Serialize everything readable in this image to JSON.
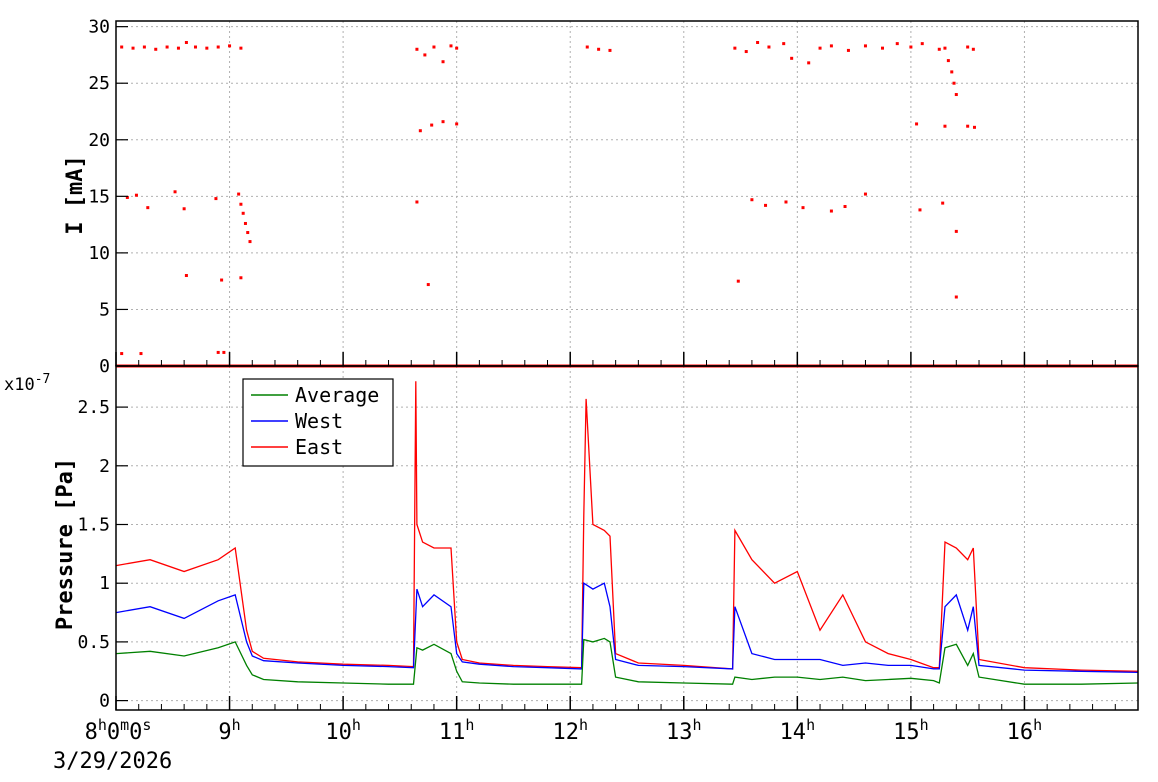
{
  "chart_data": [
    {
      "type": "scatter",
      "ylabel": "I [mA]",
      "ylim": [
        0,
        30.5
      ],
      "y_ticks": [
        "0",
        "5",
        "10",
        "15",
        "20",
        "25",
        "30"
      ],
      "grid": true,
      "color": "#ff0000",
      "points": [
        {
          "x": 8.05,
          "y": 28.2
        },
        {
          "x": 8.15,
          "y": 28.1
        },
        {
          "x": 8.25,
          "y": 28.2
        },
        {
          "x": 8.35,
          "y": 28.0
        },
        {
          "x": 8.45,
          "y": 28.2
        },
        {
          "x": 8.55,
          "y": 28.1
        },
        {
          "x": 8.62,
          "y": 28.6
        },
        {
          "x": 8.7,
          "y": 28.2
        },
        {
          "x": 8.8,
          "y": 28.1
        },
        {
          "x": 8.9,
          "y": 28.2
        },
        {
          "x": 9.0,
          "y": 28.3
        },
        {
          "x": 9.1,
          "y": 28.1
        },
        {
          "x": 8.1,
          "y": 14.9
        },
        {
          "x": 8.18,
          "y": 15.1
        },
        {
          "x": 8.28,
          "y": 14.0
        },
        {
          "x": 8.52,
          "y": 15.4
        },
        {
          "x": 8.6,
          "y": 13.9
        },
        {
          "x": 8.88,
          "y": 14.8
        },
        {
          "x": 9.08,
          "y": 15.2
        },
        {
          "x": 9.1,
          "y": 14.3
        },
        {
          "x": 8.62,
          "y": 8.0
        },
        {
          "x": 8.93,
          "y": 7.6
        },
        {
          "x": 9.1,
          "y": 7.8
        },
        {
          "x": 8.05,
          "y": 1.1
        },
        {
          "x": 8.22,
          "y": 1.1
        },
        {
          "x": 8.9,
          "y": 1.2
        },
        {
          "x": 8.95,
          "y": 1.2
        },
        {
          "x": 9.12,
          "y": 13.5
        },
        {
          "x": 9.14,
          "y": 12.6
        },
        {
          "x": 9.16,
          "y": 11.8
        },
        {
          "x": 9.18,
          "y": 11.0
        },
        {
          "x": 10.65,
          "y": 28.0
        },
        {
          "x": 10.72,
          "y": 27.5
        },
        {
          "x": 10.8,
          "y": 28.2
        },
        {
          "x": 10.88,
          "y": 26.9
        },
        {
          "x": 10.95,
          "y": 28.3
        },
        {
          "x": 11.0,
          "y": 28.1
        },
        {
          "x": 10.68,
          "y": 20.8
        },
        {
          "x": 10.78,
          "y": 21.3
        },
        {
          "x": 10.88,
          "y": 21.6
        },
        {
          "x": 11.0,
          "y": 21.4
        },
        {
          "x": 10.65,
          "y": 14.5
        },
        {
          "x": 10.75,
          "y": 7.2
        },
        {
          "x": 12.15,
          "y": 28.2
        },
        {
          "x": 12.25,
          "y": 28.0
        },
        {
          "x": 12.35,
          "y": 27.9
        },
        {
          "x": 13.45,
          "y": 28.1
        },
        {
          "x": 13.55,
          "y": 27.8
        },
        {
          "x": 13.65,
          "y": 28.6
        },
        {
          "x": 13.75,
          "y": 28.2
        },
        {
          "x": 13.88,
          "y": 28.5
        },
        {
          "x": 13.95,
          "y": 27.2
        },
        {
          "x": 14.1,
          "y": 26.8
        },
        {
          "x": 14.2,
          "y": 28.1
        },
        {
          "x": 14.3,
          "y": 28.3
        },
        {
          "x": 14.45,
          "y": 27.9
        },
        {
          "x": 14.6,
          "y": 28.3
        },
        {
          "x": 14.75,
          "y": 28.1
        },
        {
          "x": 14.88,
          "y": 28.5
        },
        {
          "x": 15.0,
          "y": 28.2
        },
        {
          "x": 15.1,
          "y": 28.5
        },
        {
          "x": 13.6,
          "y": 14.7
        },
        {
          "x": 13.72,
          "y": 14.2
        },
        {
          "x": 13.9,
          "y": 14.5
        },
        {
          "x": 14.05,
          "y": 14.0
        },
        {
          "x": 14.3,
          "y": 13.7
        },
        {
          "x": 14.42,
          "y": 14.1
        },
        {
          "x": 14.6,
          "y": 15.2
        },
        {
          "x": 15.08,
          "y": 13.8
        },
        {
          "x": 13.48,
          "y": 7.5
        },
        {
          "x": 15.05,
          "y": 21.4
        },
        {
          "x": 15.25,
          "y": 28.0
        },
        {
          "x": 15.3,
          "y": 28.1
        },
        {
          "x": 15.5,
          "y": 28.2
        },
        {
          "x": 15.55,
          "y": 28.0
        },
        {
          "x": 15.33,
          "y": 27.0
        },
        {
          "x": 15.36,
          "y": 26.0
        },
        {
          "x": 15.38,
          "y": 25.0
        },
        {
          "x": 15.4,
          "y": 24.0
        },
        {
          "x": 15.3,
          "y": 21.2
        },
        {
          "x": 15.5,
          "y": 21.2
        },
        {
          "x": 15.56,
          "y": 21.1
        },
        {
          "x": 15.28,
          "y": 14.4
        },
        {
          "x": 15.4,
          "y": 11.9
        },
        {
          "x": 15.4,
          "y": 6.1
        }
      ]
    },
    {
      "type": "line",
      "ylabel": "Pressure [Pa]",
      "y_multiplier": "x10",
      "y_exponent": "-7",
      "ylim": [
        -0.08,
        2.85
      ],
      "y_ticks": [
        "0",
        "0.5",
        "1",
        "1.5",
        "2",
        "2.5"
      ],
      "grid": true,
      "legend_placement": "top-left",
      "series": [
        {
          "name": "Average",
          "color": "#008000",
          "x": [
            8.0,
            8.3,
            8.6,
            8.9,
            9.05,
            9.15,
            9.2,
            9.3,
            9.6,
            10.0,
            10.4,
            10.62,
            10.65,
            10.7,
            10.8,
            10.95,
            11.0,
            11.05,
            11.2,
            11.5,
            11.8,
            12.1,
            12.12,
            12.2,
            12.3,
            12.35,
            12.4,
            12.6,
            13.0,
            13.43,
            13.45,
            13.6,
            13.8,
            14.0,
            14.2,
            14.4,
            14.6,
            14.8,
            15.0,
            15.2,
            15.25,
            15.3,
            15.4,
            15.5,
            15.55,
            15.6,
            16.0,
            16.5,
            17.0
          ],
          "values": [
            0.4,
            0.42,
            0.38,
            0.45,
            0.5,
            0.3,
            0.22,
            0.18,
            0.16,
            0.15,
            0.14,
            0.14,
            0.45,
            0.43,
            0.48,
            0.4,
            0.25,
            0.16,
            0.15,
            0.14,
            0.14,
            0.14,
            0.52,
            0.5,
            0.53,
            0.5,
            0.2,
            0.16,
            0.15,
            0.14,
            0.2,
            0.18,
            0.2,
            0.2,
            0.18,
            0.2,
            0.17,
            0.18,
            0.19,
            0.17,
            0.15,
            0.45,
            0.48,
            0.3,
            0.4,
            0.2,
            0.14,
            0.14,
            0.15
          ]
        },
        {
          "name": "West",
          "color": "#0000ff",
          "x": [
            8.0,
            8.3,
            8.6,
            8.9,
            9.05,
            9.15,
            9.2,
            9.3,
            9.6,
            10.0,
            10.4,
            10.62,
            10.65,
            10.7,
            10.8,
            10.95,
            11.0,
            11.05,
            11.2,
            11.5,
            11.8,
            12.1,
            12.12,
            12.2,
            12.3,
            12.35,
            12.4,
            12.6,
            13.0,
            13.43,
            13.45,
            13.6,
            13.8,
            14.0,
            14.2,
            14.4,
            14.6,
            14.8,
            15.0,
            15.2,
            15.25,
            15.3,
            15.4,
            15.5,
            15.55,
            15.6,
            16.0,
            16.5,
            17.0
          ],
          "values": [
            0.75,
            0.8,
            0.7,
            0.85,
            0.9,
            0.5,
            0.38,
            0.34,
            0.32,
            0.3,
            0.29,
            0.28,
            0.95,
            0.8,
            0.9,
            0.8,
            0.4,
            0.33,
            0.31,
            0.29,
            0.28,
            0.27,
            1.0,
            0.95,
            1.0,
            0.8,
            0.35,
            0.3,
            0.29,
            0.27,
            0.8,
            0.4,
            0.35,
            0.35,
            0.35,
            0.3,
            0.32,
            0.3,
            0.3,
            0.27,
            0.27,
            0.8,
            0.9,
            0.6,
            0.8,
            0.3,
            0.26,
            0.25,
            0.24
          ]
        },
        {
          "name": "East",
          "color": "#ff0000",
          "x": [
            8.0,
            8.3,
            8.6,
            8.9,
            9.05,
            9.15,
            9.2,
            9.3,
            9.6,
            10.0,
            10.4,
            10.62,
            10.64,
            10.65,
            10.7,
            10.8,
            10.95,
            11.0,
            11.05,
            11.2,
            11.5,
            11.8,
            12.1,
            12.12,
            12.14,
            12.2,
            12.3,
            12.35,
            12.4,
            12.6,
            13.0,
            13.43,
            13.45,
            13.6,
            13.8,
            14.0,
            14.2,
            14.4,
            14.6,
            14.8,
            15.0,
            15.2,
            15.25,
            15.3,
            15.4,
            15.5,
            15.55,
            15.6,
            16.0,
            16.5,
            17.0
          ],
          "values": [
            1.15,
            1.2,
            1.1,
            1.2,
            1.3,
            0.6,
            0.42,
            0.36,
            0.33,
            0.31,
            0.3,
            0.29,
            2.72,
            1.5,
            1.35,
            1.3,
            1.3,
            0.5,
            0.35,
            0.32,
            0.3,
            0.29,
            0.28,
            1.58,
            2.57,
            1.5,
            1.45,
            1.4,
            0.4,
            0.32,
            0.3,
            0.27,
            1.45,
            1.2,
            1.0,
            1.1,
            0.6,
            0.9,
            0.5,
            0.4,
            0.35,
            0.28,
            0.28,
            1.35,
            1.3,
            1.2,
            1.3,
            0.35,
            0.28,
            0.26,
            0.25
          ]
        }
      ]
    }
  ],
  "time_axis": {
    "xlim": [
      8.0,
      17.0
    ],
    "date": "3/29/2026",
    "ticks": [
      {
        "x": 8,
        "hour": "8",
        "hour_unit": "h",
        "rest": "0",
        "rest_unit": "m",
        "rest2": "0",
        "rest2_unit": "s"
      },
      {
        "x": 9,
        "hour": "9",
        "hour_unit": "h"
      },
      {
        "x": 10,
        "hour": "10",
        "hour_unit": "h"
      },
      {
        "x": 11,
        "hour": "11",
        "hour_unit": "h"
      },
      {
        "x": 12,
        "hour": "12",
        "hour_unit": "h"
      },
      {
        "x": 13,
        "hour": "13",
        "hour_unit": "h"
      },
      {
        "x": 14,
        "hour": "14",
        "hour_unit": "h"
      },
      {
        "x": 15,
        "hour": "15",
        "hour_unit": "h"
      },
      {
        "x": 16,
        "hour": "16",
        "hour_unit": "h"
      }
    ]
  }
}
